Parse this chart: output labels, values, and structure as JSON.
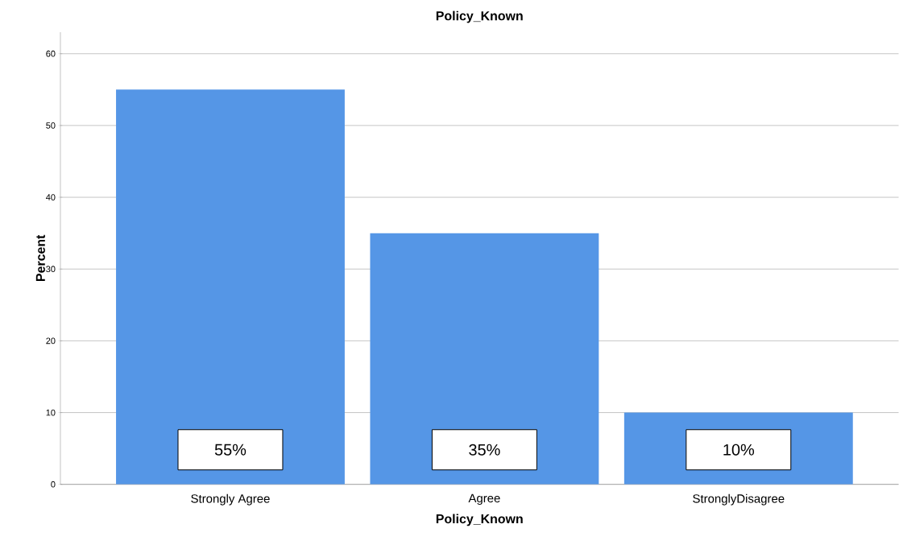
{
  "chart_data": {
    "type": "bar",
    "title": "Policy_Known",
    "xlabel": "Policy_Known",
    "ylabel": "Percent",
    "categories": [
      "Strongly Agree",
      "Agree",
      "StronglyDisagree"
    ],
    "values": [
      55,
      35,
      10
    ],
    "color": "#5596e6",
    "value_labels": [
      "55%",
      "35%",
      "10%"
    ],
    "ylim": [
      0,
      63
    ],
    "yticks": [
      0,
      10,
      20,
      30,
      40,
      50,
      60
    ],
    "grid": "y"
  }
}
